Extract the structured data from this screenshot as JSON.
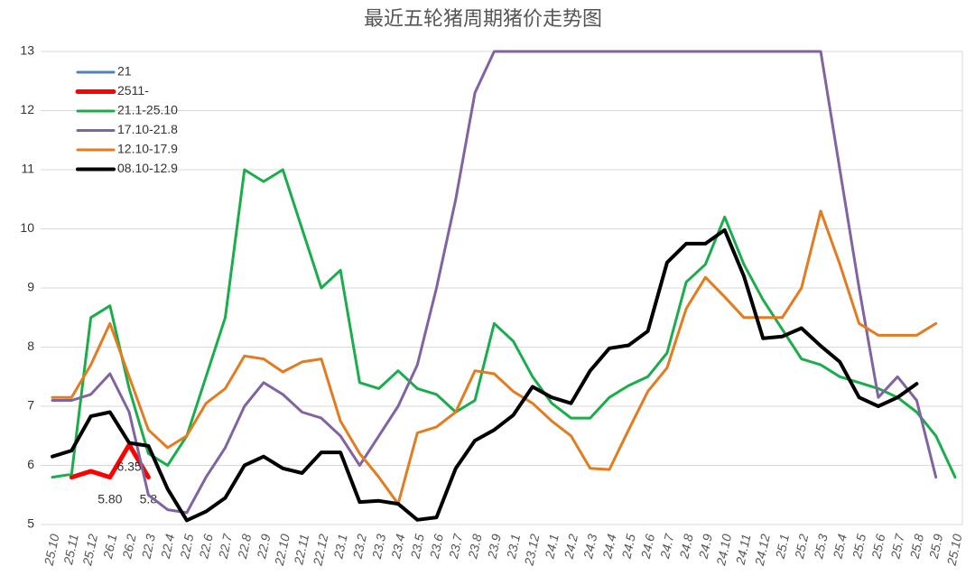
{
  "chart_data": {
    "type": "line",
    "title": "最近五轮猪周期猪价走势图",
    "categories": [
      "25.10",
      "25.11",
      "25.12",
      "26.1",
      "26.2",
      "22.3",
      "22.4",
      "22.5",
      "22.6",
      "22.7",
      "22.8",
      "22.9",
      "22.10",
      "22.11",
      "22.12",
      "23.1",
      "23.2",
      "23.3",
      "23.4",
      "23.5",
      "23.6",
      "23.7",
      "23.8",
      "23.9",
      "23.1",
      "23.12",
      "24.1",
      "24.2",
      "24.3",
      "24.4",
      "24.5",
      "24.6",
      "24.7",
      "24.8",
      "24.9",
      "24.10",
      "24.11",
      "24.12",
      "25.1",
      "25.2",
      "25.3",
      "25.4",
      "25.5",
      "25.6",
      "25.7",
      "25.8",
      "25.9",
      "25.10"
    ],
    "series": [
      {
        "name": "21",
        "color": "#4f81bd",
        "width": 3,
        "values": [
          null,
          null,
          null,
          null,
          null,
          null,
          null,
          null,
          null,
          null,
          null,
          null,
          null,
          null,
          null,
          null,
          null,
          null,
          null,
          null,
          null,
          null,
          null,
          null,
          null,
          null,
          null,
          null,
          null,
          null,
          null,
          null,
          null,
          null,
          null,
          null,
          null,
          null,
          null,
          null,
          null,
          null,
          null,
          null,
          null,
          null,
          null,
          null
        ]
      },
      {
        "name": "2511-",
        "color": "#ff0000",
        "width": 5,
        "values": [
          null,
          5.8,
          5.9,
          5.8,
          6.35,
          5.8,
          null,
          null,
          null,
          null,
          null,
          null,
          null,
          null,
          null,
          null,
          null,
          null,
          null,
          null,
          null,
          null,
          null,
          null,
          null,
          null,
          null,
          null,
          null,
          null,
          null,
          null,
          null,
          null,
          null,
          null,
          null,
          null,
          null,
          null,
          null,
          null,
          null,
          null,
          null,
          null,
          null,
          null
        ],
        "value_labels": [
          null,
          null,
          null,
          "5.80",
          "6.35",
          "5.8",
          null,
          null,
          null,
          null,
          null,
          null,
          null,
          null,
          null,
          null,
          null,
          null,
          null,
          null,
          null,
          null,
          null,
          null,
          null,
          null,
          null,
          null,
          null,
          null,
          null,
          null,
          null,
          null,
          null,
          null,
          null,
          null,
          null,
          null,
          null,
          null,
          null,
          null,
          null,
          null,
          null,
          null
        ]
      },
      {
        "name": "21.1-25.10",
        "color": "#1aad4b",
        "width": 3,
        "values": [
          5.8,
          5.85,
          8.5,
          8.7,
          7.3,
          6.2,
          6.0,
          6.5,
          7.5,
          8.5,
          11.0,
          10.8,
          11.0,
          10.0,
          9.0,
          9.3,
          7.4,
          7.3,
          7.6,
          7.3,
          7.2,
          6.9,
          7.1,
          8.4,
          8.1,
          7.5,
          7.05,
          6.8,
          6.8,
          7.15,
          7.35,
          7.5,
          7.9,
          9.1,
          9.4,
          10.2,
          9.4,
          8.8,
          8.3,
          7.8,
          7.7,
          7.5,
          7.4,
          7.3,
          7.15,
          6.9,
          6.5,
          5.8
        ]
      },
      {
        "name": "17.10-21.8",
        "color": "#8064a2",
        "width": 3,
        "values": [
          7.1,
          7.1,
          7.2,
          7.55,
          6.9,
          5.5,
          5.25,
          5.2,
          5.8,
          6.3,
          7.0,
          7.4,
          7.2,
          6.9,
          6.8,
          6.5,
          6.0,
          6.5,
          7.0,
          7.7,
          9.0,
          10.5,
          12.3,
          13,
          13,
          13,
          13,
          13,
          13,
          13,
          13,
          13,
          13,
          13,
          13,
          13,
          13,
          13,
          13,
          13,
          13,
          11.0,
          9.0,
          7.15,
          7.5,
          7.1,
          5.8,
          null
        ]
      },
      {
        "name": "12.10-17.9",
        "color": "#e37b1f",
        "width": 3,
        "values": [
          7.15,
          7.15,
          7.7,
          8.4,
          7.5,
          6.6,
          6.3,
          6.5,
          7.05,
          7.3,
          7.85,
          7.8,
          7.58,
          7.75,
          7.8,
          6.75,
          6.2,
          5.8,
          5.35,
          6.55,
          6.65,
          6.9,
          7.6,
          7.55,
          7.25,
          7.05,
          6.75,
          6.5,
          5.95,
          5.93,
          6.6,
          7.25,
          7.65,
          8.65,
          9.18,
          8.85,
          8.5,
          8.5,
          8.5,
          9.0,
          10.3,
          9.4,
          8.4,
          8.2,
          8.2,
          8.2,
          8.4,
          null
        ]
      },
      {
        "name": "08.10-12.9",
        "color": "#000000",
        "width": 4,
        "values": [
          6.15,
          6.25,
          6.83,
          6.9,
          6.38,
          6.33,
          5.6,
          5.07,
          5.22,
          5.45,
          6.0,
          6.15,
          5.95,
          5.87,
          6.22,
          6.22,
          5.38,
          5.4,
          5.35,
          5.08,
          5.12,
          5.95,
          6.42,
          6.6,
          6.85,
          7.33,
          7.15,
          7.05,
          7.6,
          7.98,
          8.03,
          8.27,
          9.43,
          9.75,
          9.75,
          9.98,
          9.2,
          8.15,
          8.18,
          8.32,
          8.02,
          7.75,
          7.15,
          7.0,
          7.15,
          7.38,
          null,
          null
        ]
      }
    ],
    "ylim": [
      5,
      13
    ],
    "yticks": [
      5,
      6,
      7,
      8,
      9,
      10,
      11,
      12,
      13
    ],
    "grid": true,
    "legend": "upper left"
  }
}
